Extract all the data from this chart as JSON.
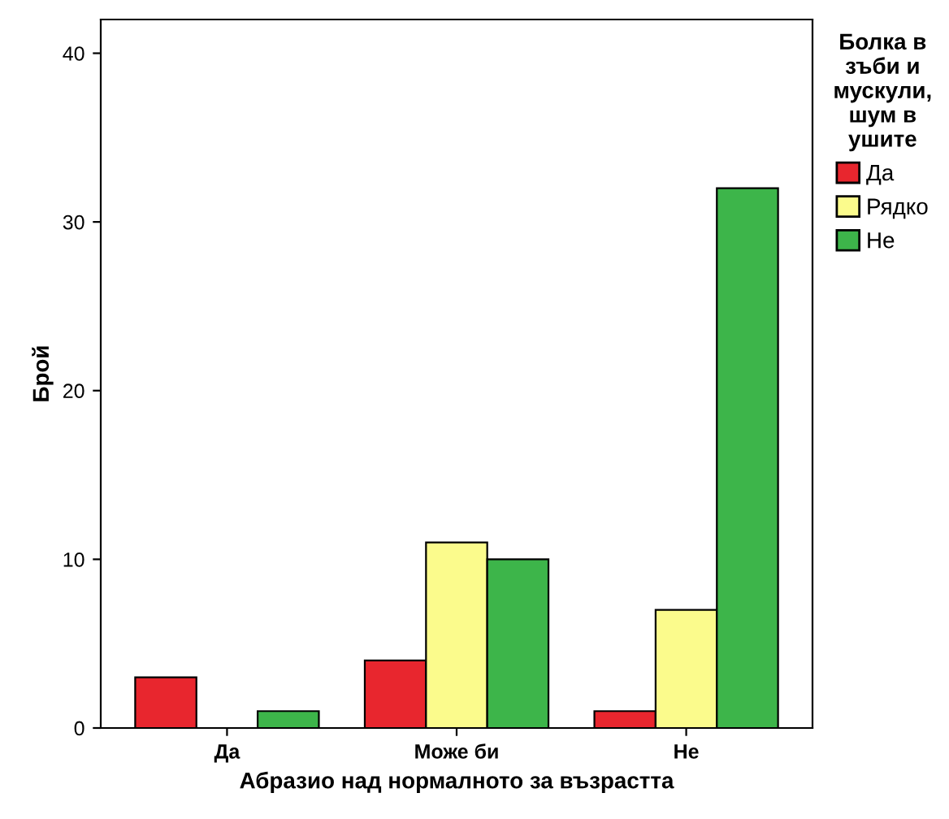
{
  "chart_data": {
    "type": "bar",
    "xlabel": "Абразио над нормалното за възрастта",
    "ylabel": "Брой",
    "legend_title": "Болка в\nзъби и\nмускули,\nшум в\nушите",
    "categories": [
      "Да",
      "Може би",
      "Не"
    ],
    "series": [
      {
        "name": "Да",
        "color": "#e8262e",
        "values": [
          3,
          4,
          1
        ]
      },
      {
        "name": "Рядко",
        "color": "#fbfb8c",
        "values": [
          null,
          11,
          7
        ]
      },
      {
        "name": "Не",
        "color": "#3db54a",
        "values": [
          1,
          10,
          32
        ]
      }
    ],
    "ylim": [
      0,
      42
    ],
    "yticks": [
      0,
      10,
      20,
      30,
      40
    ],
    "grid": false,
    "legend": "right"
  }
}
